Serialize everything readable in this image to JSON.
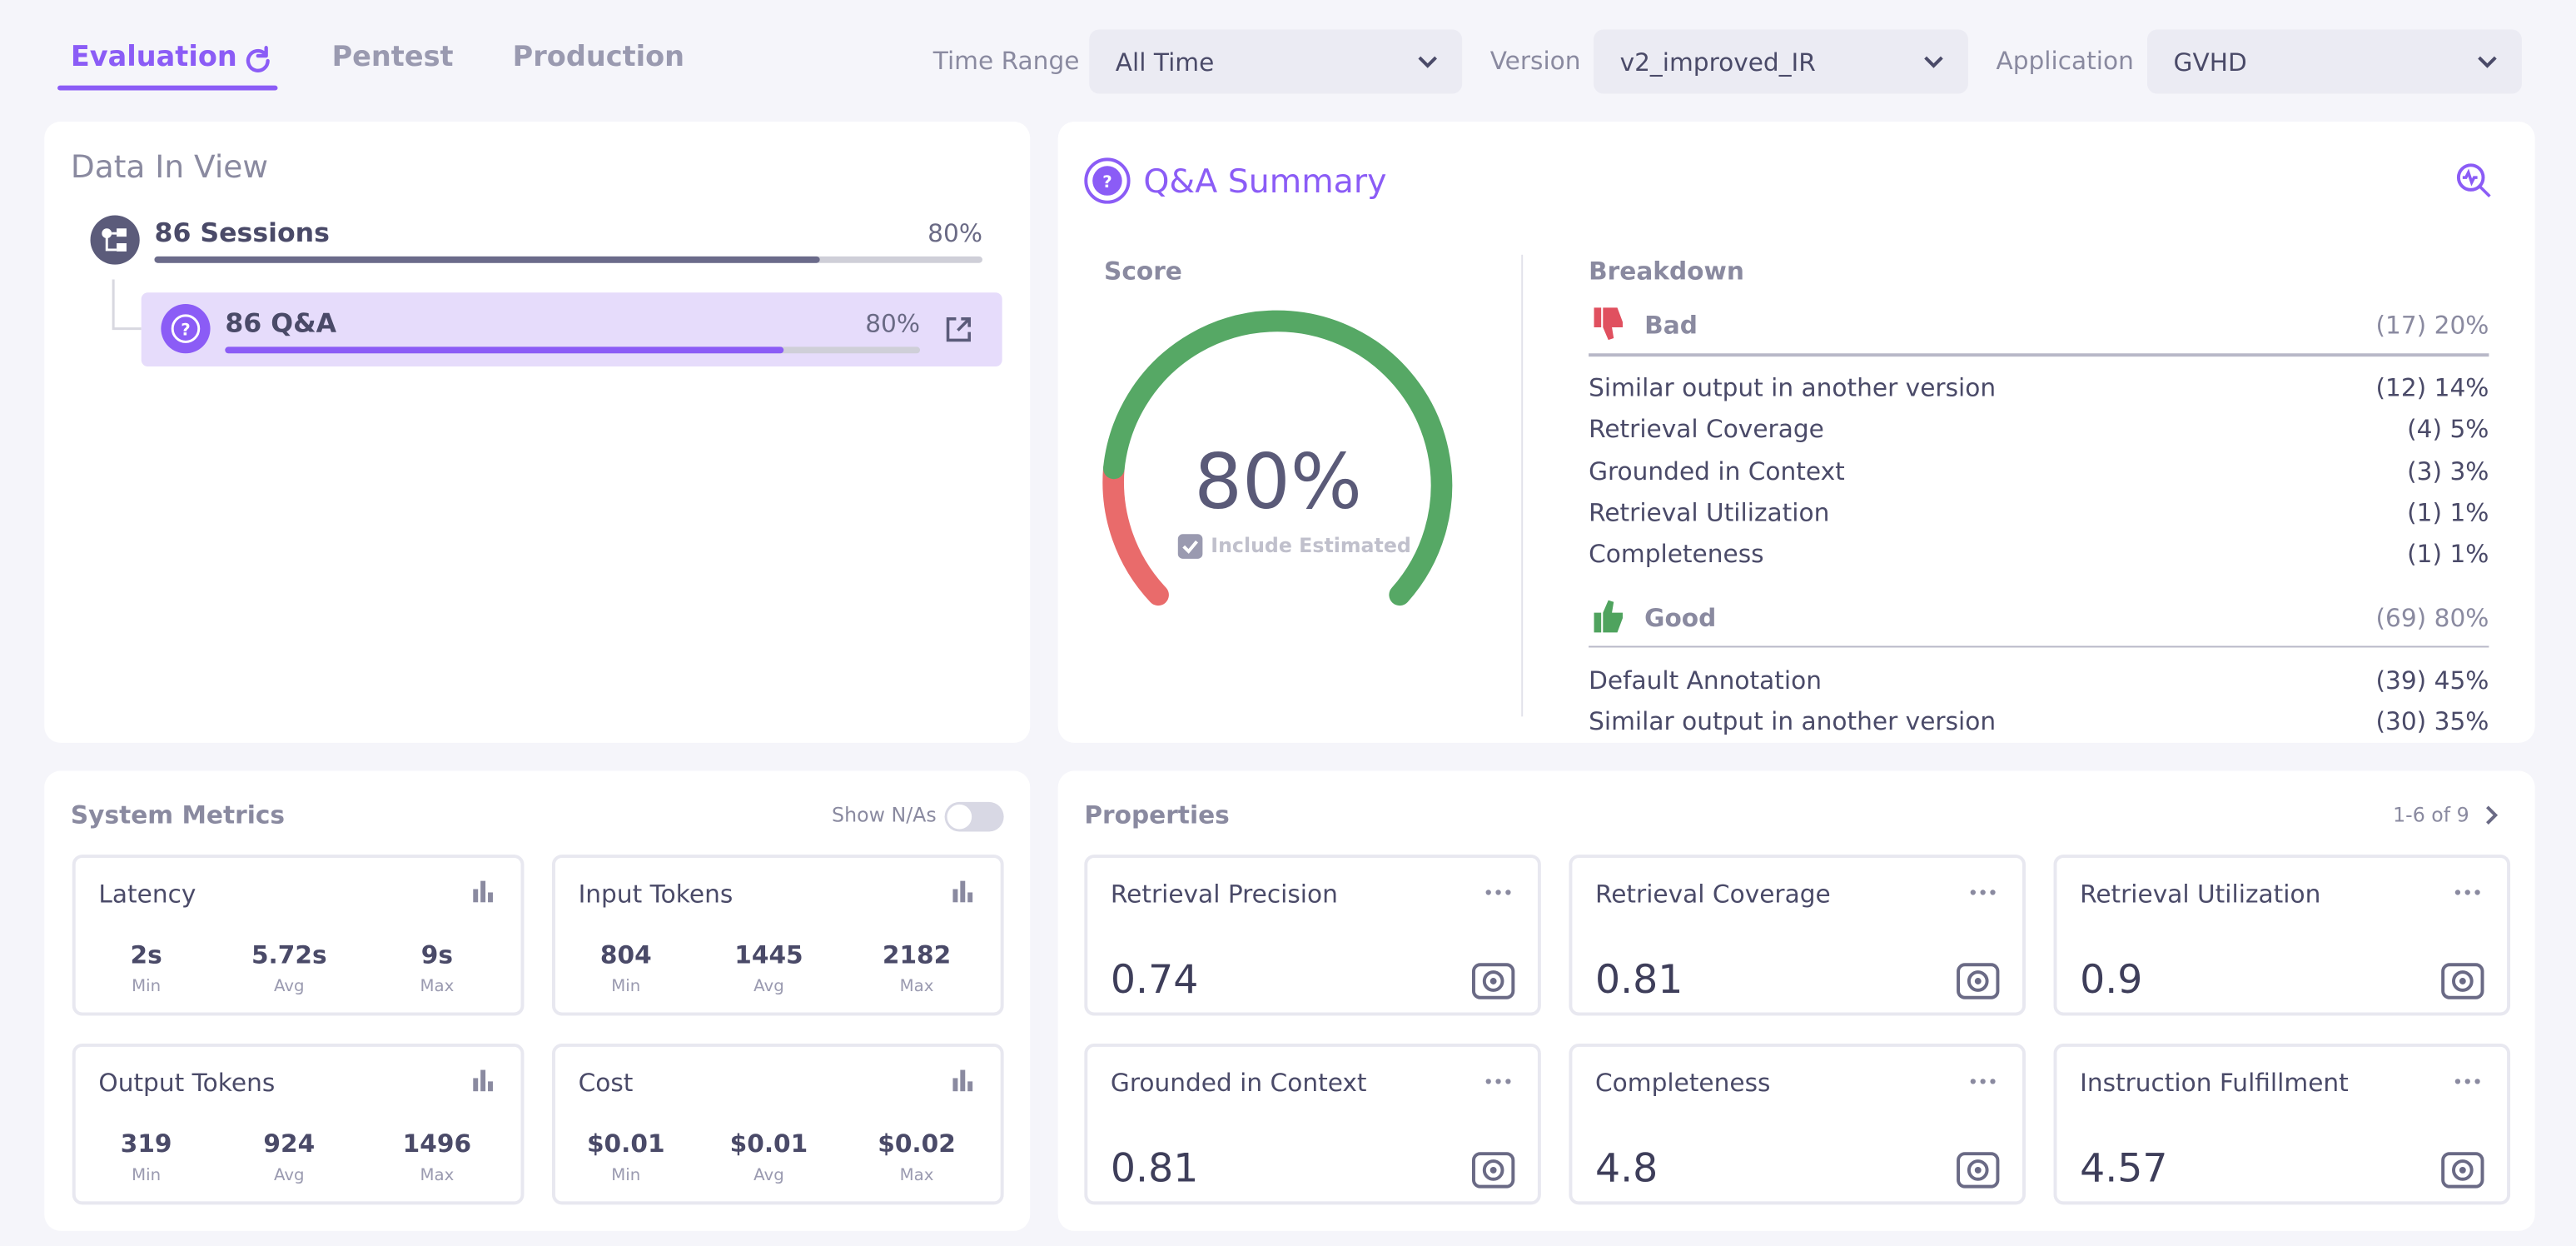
{
  "tabs": [
    "Evaluation",
    "Pentest",
    "Production"
  ],
  "filters": [
    {
      "label": "Time Range",
      "value": "All Time"
    },
    {
      "label": "Version",
      "value": "v2_improved_IR"
    },
    {
      "label": "Application",
      "value": "GVHD"
    }
  ],
  "data_in_view": {
    "title": "Data In View",
    "sessions": {
      "label": "86 Sessions",
      "percent": "80%"
    },
    "qa": {
      "label": "86 Q&A",
      "percent": "80%"
    }
  },
  "qa_summary": {
    "title": "Q&A Summary",
    "score_title": "Score",
    "score": "80%",
    "include_estimated": "Include Estimated",
    "breakdown_title": "Breakdown",
    "groups": [
      {
        "name": "Bad",
        "total": "(17) 20%",
        "items": [
          {
            "label": "Similar output in another version",
            "value": "(12) 14%"
          },
          {
            "label": "Retrieval Coverage",
            "value": "(4) 5%"
          },
          {
            "label": "Grounded in Context",
            "value": "(3) 3%"
          },
          {
            "label": "Retrieval Utilization",
            "value": "(1) 1%"
          },
          {
            "label": "Completeness",
            "value": "(1) 1%"
          }
        ]
      },
      {
        "name": "Good",
        "total": "(69) 80%",
        "items": [
          {
            "label": "Default Annotation",
            "value": "(39) 45%"
          },
          {
            "label": "Similar output in another version",
            "value": "(30) 35%"
          }
        ]
      }
    ]
  },
  "system_metrics": {
    "title": "System Metrics",
    "toggle": "Show N/As",
    "cards": [
      {
        "title": "Latency",
        "stats": [
          {
            "value": "2s",
            "label": "Min"
          },
          {
            "value": "5.72s",
            "label": "Avg"
          },
          {
            "value": "9s",
            "label": "Max"
          }
        ]
      },
      {
        "title": "Input Tokens",
        "stats": [
          {
            "value": "804",
            "label": "Min"
          },
          {
            "value": "1445",
            "label": "Avg"
          },
          {
            "value": "2182",
            "label": "Max"
          }
        ]
      },
      {
        "title": "Output Tokens",
        "stats": [
          {
            "value": "319",
            "label": "Min"
          },
          {
            "value": "924",
            "label": "Avg"
          },
          {
            "value": "1496",
            "label": "Max"
          }
        ]
      },
      {
        "title": "Cost",
        "stats": [
          {
            "value": "$0.01",
            "label": "Min"
          },
          {
            "value": "$0.01",
            "label": "Avg"
          },
          {
            "value": "$0.02",
            "label": "Max"
          }
        ]
      }
    ]
  },
  "properties": {
    "title": "Properties",
    "pagination": "1-6 of 9",
    "cards": [
      {
        "name": "Retrieval Precision",
        "value": "0.74"
      },
      {
        "name": "Retrieval Coverage",
        "value": "0.81"
      },
      {
        "name": "Retrieval Utilization",
        "value": "0.9"
      },
      {
        "name": "Grounded in Context",
        "value": "0.81"
      },
      {
        "name": "Completeness",
        "value": "4.8"
      },
      {
        "name": "Instruction Fulfillment",
        "value": "4.57"
      }
    ]
  }
}
